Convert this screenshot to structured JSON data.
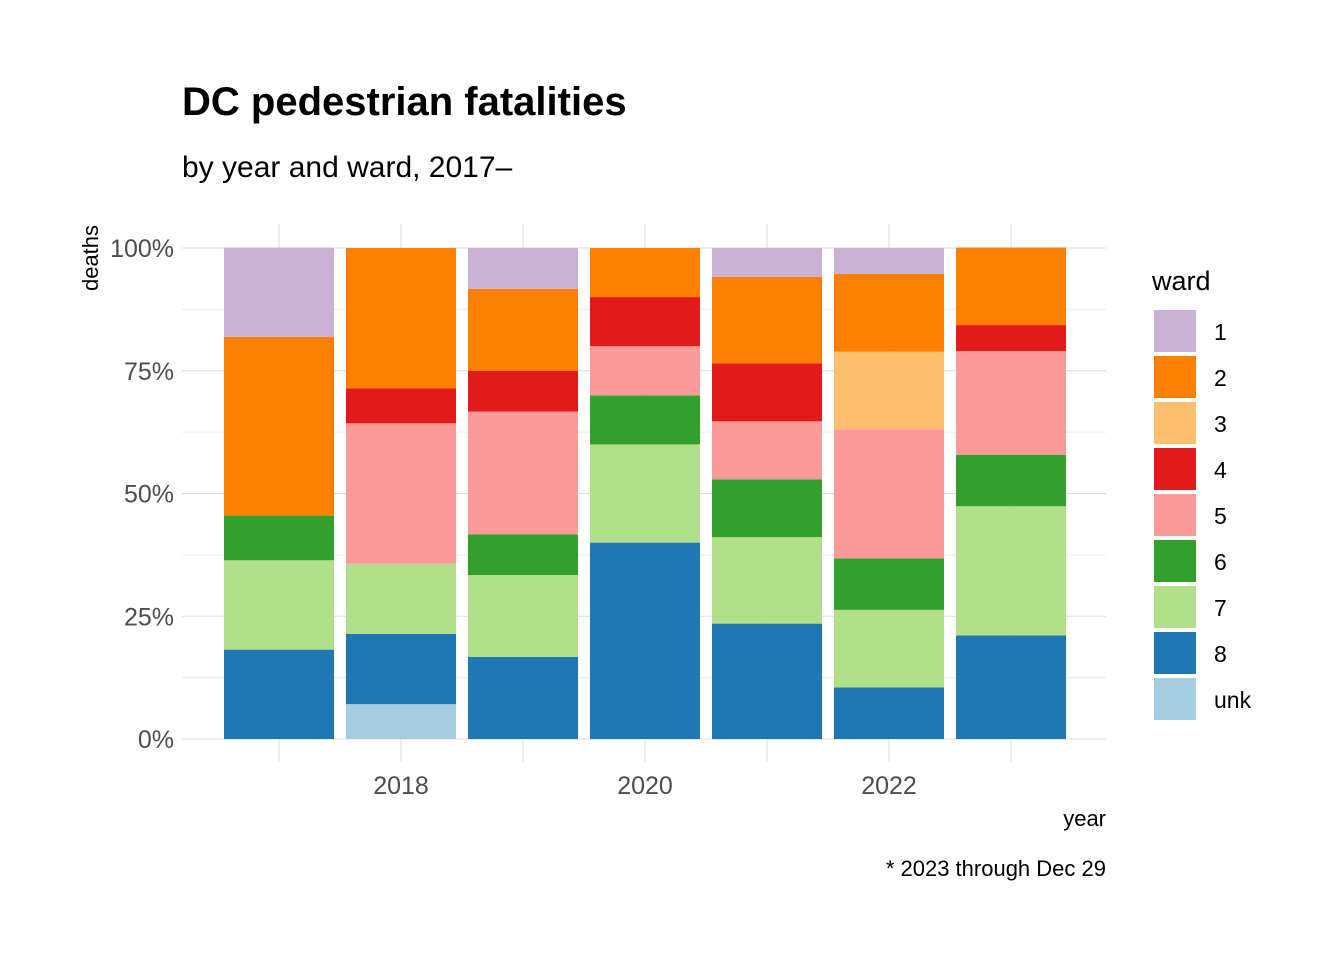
{
  "chart_data": {
    "type": "bar",
    "stacked": true,
    "normalized": true,
    "title": "DC pedestrian fatalities",
    "subtitle": "by year and ward, 2017–",
    "xlabel": "year",
    "ylabel": "deaths",
    "caption": "* 2023 through Dec 29",
    "legend_title": "ward",
    "legend_position": "right",
    "grid": true,
    "ylim": [
      0,
      1
    ],
    "y_ticks": [
      "0%",
      "25%",
      "50%",
      "75%",
      "100%"
    ],
    "x_ticks": [
      "2018",
      "2020",
      "2022"
    ],
    "categories": [
      "2017",
      "2018",
      "2019",
      "2020",
      "2021",
      "2022",
      "2023"
    ],
    "series": [
      {
        "name": "unk",
        "color": "#a6cee3",
        "values": [
          0,
          0.071,
          0,
          0,
          0,
          0,
          0
        ]
      },
      {
        "name": "8",
        "color": "#1f78b4",
        "values": [
          0.182,
          0.143,
          0.167,
          0.4,
          0.235,
          0.105,
          0.211
        ]
      },
      {
        "name": "7",
        "color": "#b2df8a",
        "values": [
          0.182,
          0.143,
          0.167,
          0.2,
          0.176,
          0.158,
          0.263
        ]
      },
      {
        "name": "6",
        "color": "#33a02c",
        "values": [
          0.091,
          0,
          0.083,
          0.1,
          0.118,
          0.105,
          0.105
        ]
      },
      {
        "name": "5",
        "color": "#fb9a99",
        "values": [
          0,
          0.286,
          0.25,
          0.1,
          0.118,
          0.263,
          0.211
        ]
      },
      {
        "name": "4",
        "color": "#e31a1c",
        "values": [
          0,
          0.071,
          0.083,
          0.1,
          0.118,
          0,
          0.053
        ]
      },
      {
        "name": "3",
        "color": "#fdbf6f",
        "values": [
          0,
          0,
          0,
          0,
          0,
          0.158,
          0
        ]
      },
      {
        "name": "2",
        "color": "#ff7f00",
        "values": [
          0.364,
          0.286,
          0.167,
          0.1,
          0.176,
          0.158,
          0.158
        ]
      },
      {
        "name": "1",
        "color": "#cab2d6",
        "values": [
          0.182,
          0,
          0.083,
          0,
          0.059,
          0.053,
          0
        ]
      }
    ],
    "legend_order": [
      "1",
      "2",
      "3",
      "4",
      "5",
      "6",
      "7",
      "8",
      "unk"
    ]
  }
}
